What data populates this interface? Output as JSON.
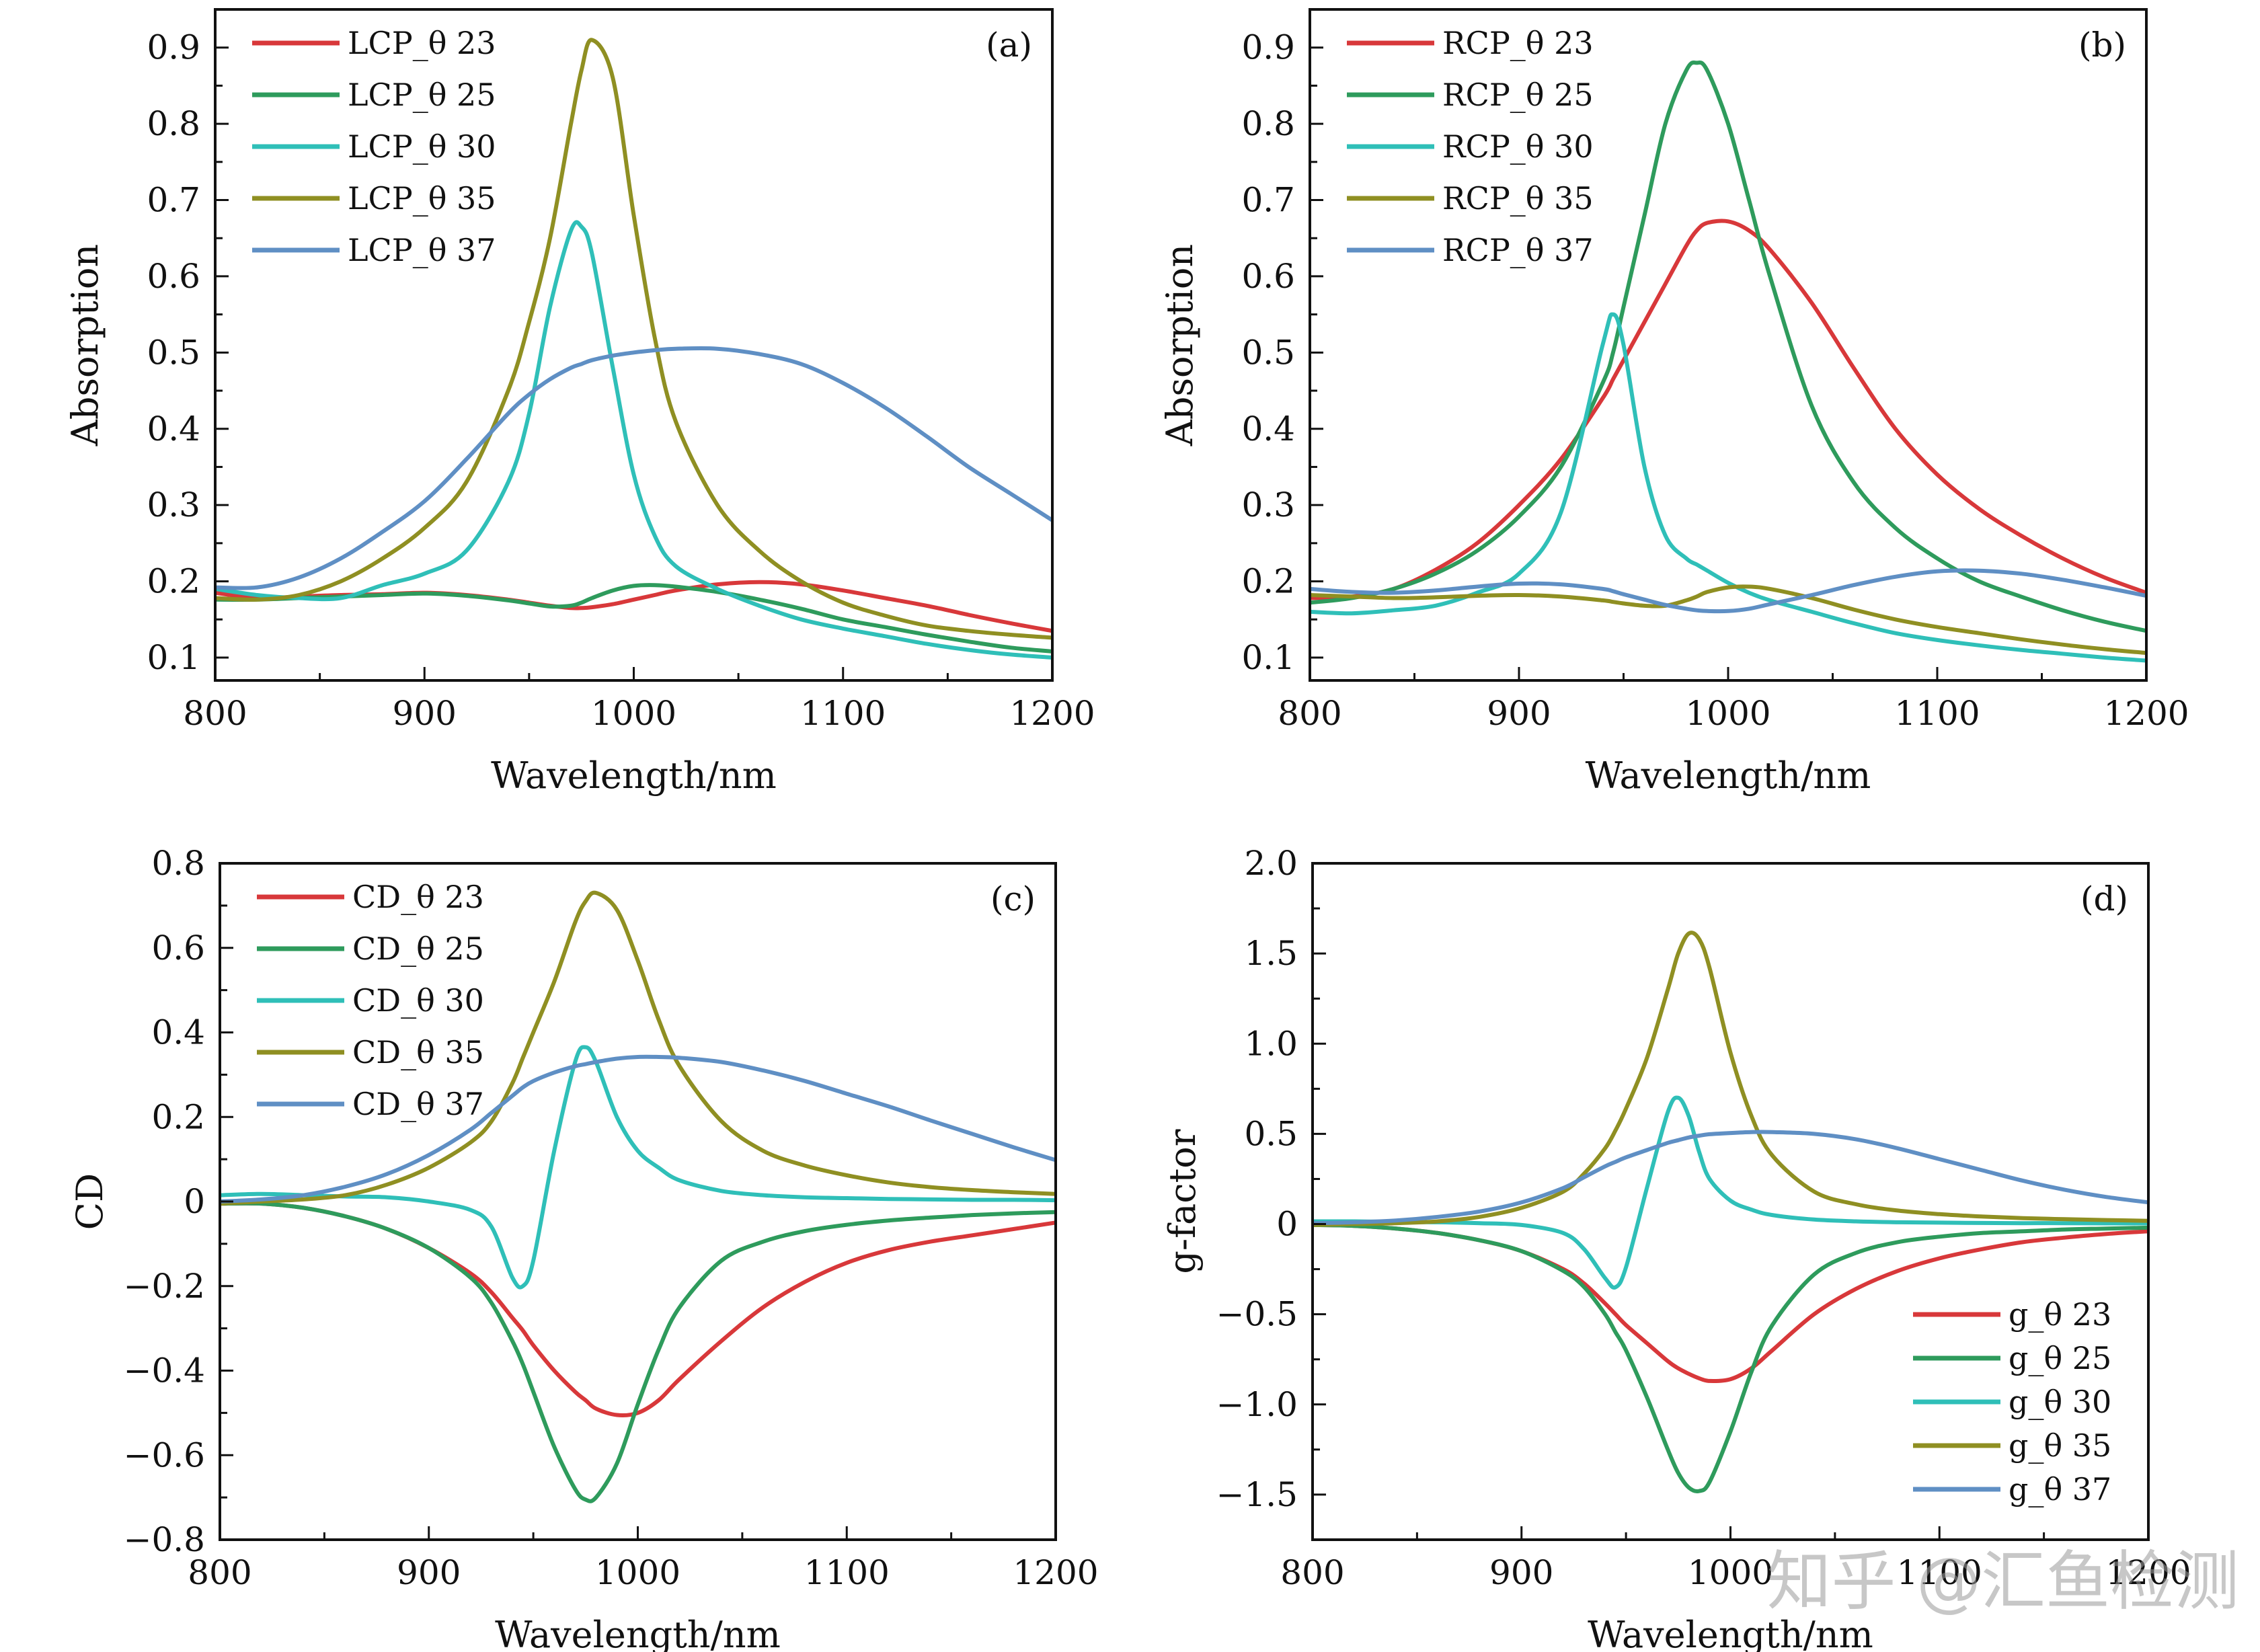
{
  "watermark": "知乎 @汇鱼检测",
  "chart_data": [
    {
      "type": "line",
      "panel_label": "(a)",
      "xlabel": "Wavelength/nm",
      "ylabel": "Absorption",
      "xlim": [
        800,
        1200
      ],
      "ylim": [
        0.07,
        0.95
      ],
      "xticks": [
        800,
        900,
        1000,
        1100,
        1200
      ],
      "xtick_labels": [
        "800",
        "900",
        "1000",
        "1100",
        "1200"
      ],
      "yticks": [
        0.1,
        0.2,
        0.3,
        0.4,
        0.5,
        0.6,
        0.7,
        0.8,
        0.9
      ],
      "ytick_labels": [
        "0.1",
        "0.2",
        "0.3",
        "0.4",
        "0.5",
        "0.6",
        "0.7",
        "0.8",
        "0.9"
      ],
      "legend_position": "top-left",
      "x": [
        800,
        820,
        840,
        860,
        880,
        900,
        920,
        940,
        950,
        960,
        970,
        975,
        980,
        990,
        1000,
        1010,
        1020,
        1040,
        1060,
        1080,
        1100,
        1120,
        1140,
        1160,
        1180,
        1200
      ],
      "series": [
        {
          "name": "LCP_θ 23",
          "color": "#d8383a",
          "values": [
            0.185,
            0.178,
            0.18,
            0.182,
            0.183,
            0.185,
            0.182,
            0.176,
            0.172,
            0.168,
            0.165,
            0.165,
            0.166,
            0.17,
            0.176,
            0.182,
            0.188,
            0.196,
            0.199,
            0.196,
            0.188,
            0.178,
            0.168,
            0.156,
            0.145,
            0.135
          ]
        },
        {
          "name": "LCP_θ 25",
          "color": "#2e9b5c",
          "values": [
            0.176,
            0.176,
            0.178,
            0.18,
            0.182,
            0.184,
            0.181,
            0.175,
            0.171,
            0.167,
            0.168,
            0.172,
            0.178,
            0.188,
            0.194,
            0.195,
            0.193,
            0.186,
            0.176,
            0.164,
            0.15,
            0.14,
            0.13,
            0.121,
            0.113,
            0.108
          ]
        },
        {
          "name": "LCP_θ 30",
          "color": "#2fbfb8",
          "values": [
            0.19,
            0.182,
            0.178,
            0.178,
            0.195,
            0.21,
            0.24,
            0.33,
            0.42,
            0.56,
            0.66,
            0.665,
            0.63,
            0.48,
            0.34,
            0.26,
            0.22,
            0.19,
            0.168,
            0.15,
            0.138,
            0.128,
            0.118,
            0.11,
            0.104,
            0.1
          ]
        },
        {
          "name": "LCP_θ 35",
          "color": "#8f8f22",
          "values": [
            0.178,
            0.176,
            0.182,
            0.2,
            0.23,
            0.27,
            0.33,
            0.45,
            0.54,
            0.65,
            0.8,
            0.87,
            0.91,
            0.86,
            0.68,
            0.52,
            0.41,
            0.3,
            0.24,
            0.2,
            0.172,
            0.155,
            0.142,
            0.135,
            0.13,
            0.126
          ]
        },
        {
          "name": "LCP_θ 37",
          "color": "#5f8fc4",
          "values": [
            0.192,
            0.192,
            0.205,
            0.23,
            0.265,
            0.305,
            0.36,
            0.42,
            0.445,
            0.465,
            0.48,
            0.485,
            0.49,
            0.496,
            0.5,
            0.503,
            0.505,
            0.505,
            0.498,
            0.485,
            0.46,
            0.428,
            0.39,
            0.35,
            0.315,
            0.28
          ]
        }
      ]
    },
    {
      "type": "line",
      "panel_label": "(b)",
      "xlabel": "Wavelength/nm",
      "ylabel": "Absorption",
      "xlim": [
        800,
        1200
      ],
      "ylim": [
        0.07,
        0.95
      ],
      "xticks": [
        800,
        900,
        1000,
        1100,
        1200
      ],
      "xtick_labels": [
        "800",
        "900",
        "1000",
        "1100",
        "1200"
      ],
      "yticks": [
        0.1,
        0.2,
        0.3,
        0.4,
        0.5,
        0.6,
        0.7,
        0.8,
        0.9
      ],
      "ytick_labels": [
        "0.1",
        "0.2",
        "0.3",
        "0.4",
        "0.5",
        "0.6",
        "0.7",
        "0.8",
        "0.9"
      ],
      "legend_position": "top-left",
      "x": [
        800,
        820,
        840,
        860,
        880,
        900,
        920,
        940,
        945,
        950,
        960,
        970,
        980,
        985,
        990,
        1000,
        1010,
        1020,
        1040,
        1060,
        1080,
        1100,
        1120,
        1140,
        1160,
        1180,
        1200
      ],
      "series": [
        {
          "name": "RCP_θ 23",
          "color": "#d8383a",
          "values": [
            0.178,
            0.18,
            0.19,
            0.215,
            0.25,
            0.3,
            0.36,
            0.44,
            0.465,
            0.49,
            0.54,
            0.59,
            0.64,
            0.66,
            0.67,
            0.672,
            0.66,
            0.635,
            0.565,
            0.48,
            0.4,
            0.34,
            0.295,
            0.26,
            0.23,
            0.205,
            0.185
          ]
        },
        {
          "name": "RCP_θ 25",
          "color": "#2e9b5c",
          "values": [
            0.172,
            0.178,
            0.19,
            0.21,
            0.24,
            0.285,
            0.35,
            0.46,
            0.5,
            0.56,
            0.68,
            0.8,
            0.87,
            0.88,
            0.87,
            0.8,
            0.7,
            0.6,
            0.43,
            0.33,
            0.27,
            0.23,
            0.2,
            0.18,
            0.162,
            0.147,
            0.135
          ]
        },
        {
          "name": "RCP_θ 30",
          "color": "#2fbfb8",
          "values": [
            0.16,
            0.158,
            0.162,
            0.168,
            0.185,
            0.21,
            0.29,
            0.51,
            0.55,
            0.51,
            0.35,
            0.26,
            0.23,
            0.222,
            0.214,
            0.198,
            0.185,
            0.175,
            0.16,
            0.145,
            0.132,
            0.123,
            0.116,
            0.11,
            0.105,
            0.1,
            0.096
          ]
        },
        {
          "name": "RCP_θ 35",
          "color": "#8f8f22",
          "values": [
            0.182,
            0.18,
            0.178,
            0.179,
            0.181,
            0.182,
            0.18,
            0.175,
            0.173,
            0.171,
            0.168,
            0.168,
            0.175,
            0.18,
            0.186,
            0.192,
            0.193,
            0.19,
            0.178,
            0.163,
            0.15,
            0.14,
            0.132,
            0.124,
            0.117,
            0.111,
            0.106
          ]
        },
        {
          "name": "RCP_θ 37",
          "color": "#5f8fc4",
          "values": [
            0.19,
            0.186,
            0.185,
            0.188,
            0.193,
            0.197,
            0.196,
            0.19,
            0.187,
            0.183,
            0.176,
            0.169,
            0.164,
            0.162,
            0.161,
            0.161,
            0.164,
            0.17,
            0.182,
            0.195,
            0.206,
            0.213,
            0.214,
            0.21,
            0.202,
            0.192,
            0.181
          ]
        }
      ]
    },
    {
      "type": "line",
      "panel_label": "(c)",
      "xlabel": "Wavelength/nm",
      "ylabel": "CD",
      "xlim": [
        800,
        1200
      ],
      "ylim": [
        -0.8,
        0.8
      ],
      "xticks": [
        800,
        900,
        1000,
        1100,
        1200
      ],
      "xtick_labels": [
        "800",
        "900",
        "1000",
        "1100",
        "1200"
      ],
      "yticks": [
        -0.8,
        -0.6,
        -0.4,
        -0.2,
        0,
        0.2,
        0.4,
        0.6,
        0.8
      ],
      "ytick_labels": [
        "−0.8",
        "−0.6",
        "−0.4",
        "−0.2",
        "0",
        "0.2",
        "0.4",
        "0.6",
        "0.8"
      ],
      "legend_position": "top-left",
      "x": [
        800,
        820,
        840,
        860,
        880,
        900,
        920,
        930,
        940,
        945,
        950,
        960,
        970,
        975,
        980,
        990,
        1000,
        1010,
        1020,
        1040,
        1060,
        1080,
        1100,
        1120,
        1140,
        1160,
        1180,
        1200
      ],
      "series": [
        {
          "name": "CD_θ 23",
          "color": "#d8383a",
          "values": [
            -0.005,
            -0.005,
            -0.015,
            -0.035,
            -0.065,
            -0.11,
            -0.17,
            -0.215,
            -0.275,
            -0.305,
            -0.34,
            -0.4,
            -0.45,
            -0.47,
            -0.49,
            -0.505,
            -0.5,
            -0.47,
            -0.42,
            -0.33,
            -0.25,
            -0.19,
            -0.145,
            -0.115,
            -0.095,
            -0.08,
            -0.065,
            -0.05
          ]
        },
        {
          "name": "CD_θ 25",
          "color": "#2e9b5c",
          "values": [
            -0.005,
            -0.005,
            -0.015,
            -0.035,
            -0.065,
            -0.11,
            -0.18,
            -0.24,
            -0.33,
            -0.385,
            -0.45,
            -0.58,
            -0.68,
            -0.705,
            -0.7,
            -0.62,
            -0.48,
            -0.35,
            -0.25,
            -0.14,
            -0.095,
            -0.07,
            -0.055,
            -0.045,
            -0.038,
            -0.032,
            -0.028,
            -0.025
          ]
        },
        {
          "name": "CD_θ 30",
          "color": "#2fbfb8",
          "values": [
            0.015,
            0.018,
            0.015,
            0.012,
            0.01,
            0.0,
            -0.02,
            -0.06,
            -0.18,
            -0.2,
            -0.14,
            0.12,
            0.33,
            0.365,
            0.33,
            0.2,
            0.12,
            0.08,
            0.05,
            0.025,
            0.015,
            0.01,
            0.008,
            0.006,
            0.005,
            0.004,
            0.004,
            0.003
          ]
        },
        {
          "name": "CD_θ 35",
          "color": "#8f8f22",
          "values": [
            -0.005,
            0.0,
            0.005,
            0.015,
            0.04,
            0.08,
            0.14,
            0.19,
            0.28,
            0.34,
            0.4,
            0.52,
            0.66,
            0.71,
            0.73,
            0.69,
            0.57,
            0.43,
            0.32,
            0.19,
            0.12,
            0.085,
            0.062,
            0.045,
            0.034,
            0.027,
            0.022,
            0.018
          ]
        },
        {
          "name": "CD_θ 37",
          "color": "#5f8fc4",
          "values": [
            0.0,
            0.005,
            0.015,
            0.035,
            0.065,
            0.11,
            0.17,
            0.21,
            0.25,
            0.27,
            0.285,
            0.305,
            0.32,
            0.325,
            0.33,
            0.338,
            0.342,
            0.342,
            0.34,
            0.33,
            0.31,
            0.285,
            0.255,
            0.225,
            0.192,
            0.16,
            0.128,
            0.098
          ]
        }
      ]
    },
    {
      "type": "line",
      "panel_label": "(d)",
      "xlabel": "Wavelength/nm",
      "ylabel": "g-factor",
      "xlim": [
        800,
        1200
      ],
      "ylim": [
        -1.75,
        2.0
      ],
      "xticks": [
        800,
        900,
        1000,
        1100,
        1200
      ],
      "xtick_labels": [
        "800",
        "900",
        "1000",
        "1100",
        "1200"
      ],
      "yticks": [
        -1.5,
        -1.0,
        -0.5,
        0,
        0.5,
        1.0,
        1.5,
        2.0
      ],
      "ytick_labels": [
        "−1.5",
        "−1.0",
        "−0.5",
        "0",
        "0.5",
        "1.0",
        "1.5",
        "2.0"
      ],
      "legend_position": "bottom-right",
      "x": [
        800,
        820,
        840,
        860,
        880,
        900,
        920,
        930,
        940,
        945,
        950,
        960,
        970,
        975,
        980,
        985,
        990,
        1000,
        1010,
        1020,
        1040,
        1060,
        1080,
        1100,
        1120,
        1140,
        1160,
        1180,
        1200
      ],
      "series": [
        {
          "name": "g_θ 23",
          "color": "#d8383a",
          "values": [
            -0.005,
            -0.01,
            -0.025,
            -0.05,
            -0.09,
            -0.15,
            -0.25,
            -0.33,
            -0.44,
            -0.5,
            -0.56,
            -0.66,
            -0.76,
            -0.8,
            -0.83,
            -0.855,
            -0.87,
            -0.86,
            -0.8,
            -0.7,
            -0.5,
            -0.36,
            -0.26,
            -0.19,
            -0.14,
            -0.1,
            -0.075,
            -0.055,
            -0.04
          ]
        },
        {
          "name": "g_θ 25",
          "color": "#2e9b5c",
          "values": [
            -0.005,
            -0.01,
            -0.025,
            -0.05,
            -0.09,
            -0.15,
            -0.26,
            -0.35,
            -0.5,
            -0.6,
            -0.7,
            -0.96,
            -1.25,
            -1.38,
            -1.46,
            -1.48,
            -1.43,
            -1.15,
            -0.82,
            -0.56,
            -0.28,
            -0.16,
            -0.1,
            -0.07,
            -0.05,
            -0.04,
            -0.03,
            -0.025,
            -0.02
          ]
        },
        {
          "name": "g_θ 30",
          "color": "#2fbfb8",
          "values": [
            0.015,
            0.015,
            0.012,
            0.01,
            0.005,
            -0.005,
            -0.05,
            -0.14,
            -0.3,
            -0.35,
            -0.24,
            0.2,
            0.62,
            0.7,
            0.6,
            0.4,
            0.25,
            0.13,
            0.08,
            0.05,
            0.025,
            0.015,
            0.01,
            0.008,
            0.006,
            0.005,
            0.005,
            0.004,
            0.004
          ]
        },
        {
          "name": "g_θ 35",
          "color": "#8f8f22",
          "values": [
            -0.005,
            0.0,
            0.005,
            0.015,
            0.04,
            0.09,
            0.18,
            0.28,
            0.42,
            0.52,
            0.64,
            0.92,
            1.3,
            1.5,
            1.61,
            1.58,
            1.42,
            0.95,
            0.6,
            0.38,
            0.18,
            0.11,
            0.075,
            0.055,
            0.042,
            0.033,
            0.027,
            0.022,
            0.018
          ]
        },
        {
          "name": "g_θ 37",
          "color": "#5f8fc4",
          "values": [
            0.005,
            0.01,
            0.02,
            0.04,
            0.07,
            0.12,
            0.2,
            0.26,
            0.32,
            0.345,
            0.37,
            0.41,
            0.45,
            0.465,
            0.48,
            0.49,
            0.498,
            0.505,
            0.51,
            0.51,
            0.5,
            0.47,
            0.42,
            0.36,
            0.3,
            0.24,
            0.19,
            0.15,
            0.12
          ]
        }
      ]
    }
  ]
}
